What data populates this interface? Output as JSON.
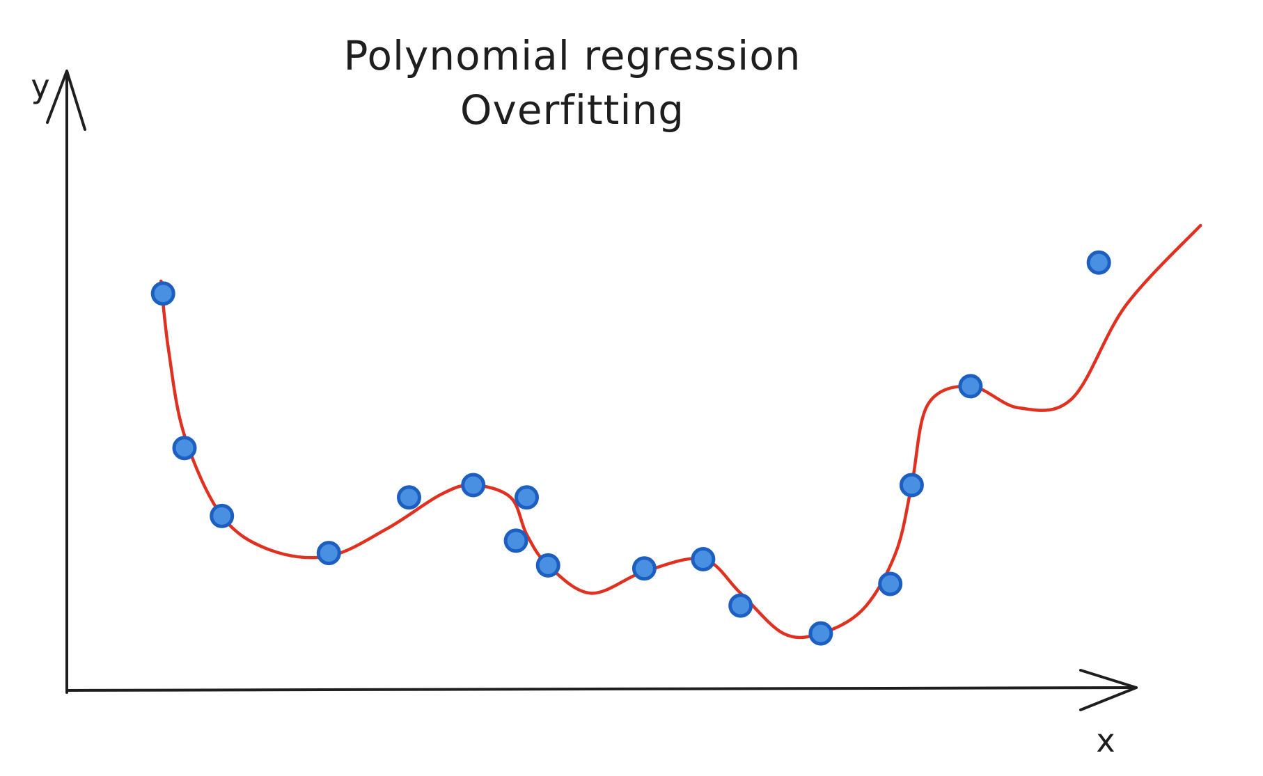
{
  "chart_data": {
    "type": "scatter",
    "title": "Polynomial regression",
    "subtitle": "Overfitting",
    "xlabel": "x",
    "ylabel": "y",
    "xlim": [
      0,
      100
    ],
    "ylim": [
      0,
      100
    ],
    "grid": false,
    "points": [
      {
        "x": 9,
        "y": 64
      },
      {
        "x": 11,
        "y": 39
      },
      {
        "x": 14.5,
        "y": 28
      },
      {
        "x": 24.5,
        "y": 22
      },
      {
        "x": 32,
        "y": 31
      },
      {
        "x": 38,
        "y": 33
      },
      {
        "x": 43,
        "y": 31
      },
      {
        "x": 42,
        "y": 24
      },
      {
        "x": 45,
        "y": 20
      },
      {
        "x": 54,
        "y": 19.5
      },
      {
        "x": 59.5,
        "y": 21
      },
      {
        "x": 63,
        "y": 13.5
      },
      {
        "x": 70.5,
        "y": 9
      },
      {
        "x": 77,
        "y": 17
      },
      {
        "x": 79,
        "y": 33
      },
      {
        "x": 84.5,
        "y": 49
      },
      {
        "x": 96.5,
        "y": 69
      },
      {
        "x": 84.5,
        "y": 49
      }
    ],
    "fit_curve": [
      {
        "x": 8.8,
        "y": 66
      },
      {
        "x": 9.5,
        "y": 55
      },
      {
        "x": 11,
        "y": 41
      },
      {
        "x": 14.5,
        "y": 28
      },
      {
        "x": 19,
        "y": 22.5
      },
      {
        "x": 24.5,
        "y": 21.5
      },
      {
        "x": 30,
        "y": 26
      },
      {
        "x": 35,
        "y": 31.5
      },
      {
        "x": 38,
        "y": 33
      },
      {
        "x": 41.5,
        "y": 31
      },
      {
        "x": 43,
        "y": 25
      },
      {
        "x": 45,
        "y": 20
      },
      {
        "x": 49,
        "y": 15.5
      },
      {
        "x": 54,
        "y": 19
      },
      {
        "x": 59.5,
        "y": 21
      },
      {
        "x": 63,
        "y": 15.5
      },
      {
        "x": 67,
        "y": 9
      },
      {
        "x": 70.5,
        "y": 9
      },
      {
        "x": 74.5,
        "y": 13
      },
      {
        "x": 77.5,
        "y": 22
      },
      {
        "x": 79,
        "y": 33
      },
      {
        "x": 80.5,
        "y": 46
      },
      {
        "x": 84.5,
        "y": 49
      },
      {
        "x": 89,
        "y": 45.5
      },
      {
        "x": 94,
        "y": 47
      },
      {
        "x": 99,
        "y": 62
      },
      {
        "x": 106,
        "y": 75
      }
    ],
    "colors": {
      "points_fill": "#4a90e2",
      "points_stroke": "#1c5fc0",
      "curve": "#e03020",
      "axis": "#1e1e1e",
      "text": "#1e1e1e"
    }
  }
}
